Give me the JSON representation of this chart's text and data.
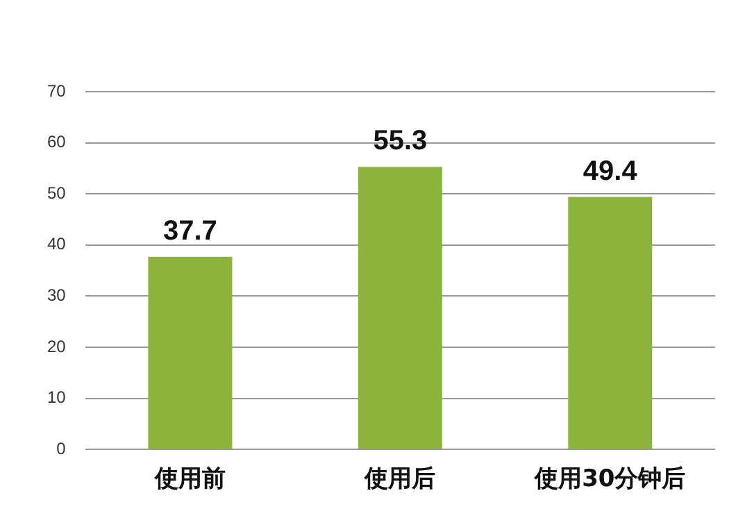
{
  "chart_data": {
    "type": "bar",
    "categories": [
      "使用前",
      "使用后",
      "使用30分钟后"
    ],
    "values": [
      37.7,
      55.3,
      49.4
    ],
    "color": "#8cb33c",
    "ylim": [
      0,
      70
    ],
    "yticks": [
      0,
      10,
      20,
      30,
      40,
      50,
      60,
      70
    ],
    "grid": "y",
    "data_labels": true
  }
}
